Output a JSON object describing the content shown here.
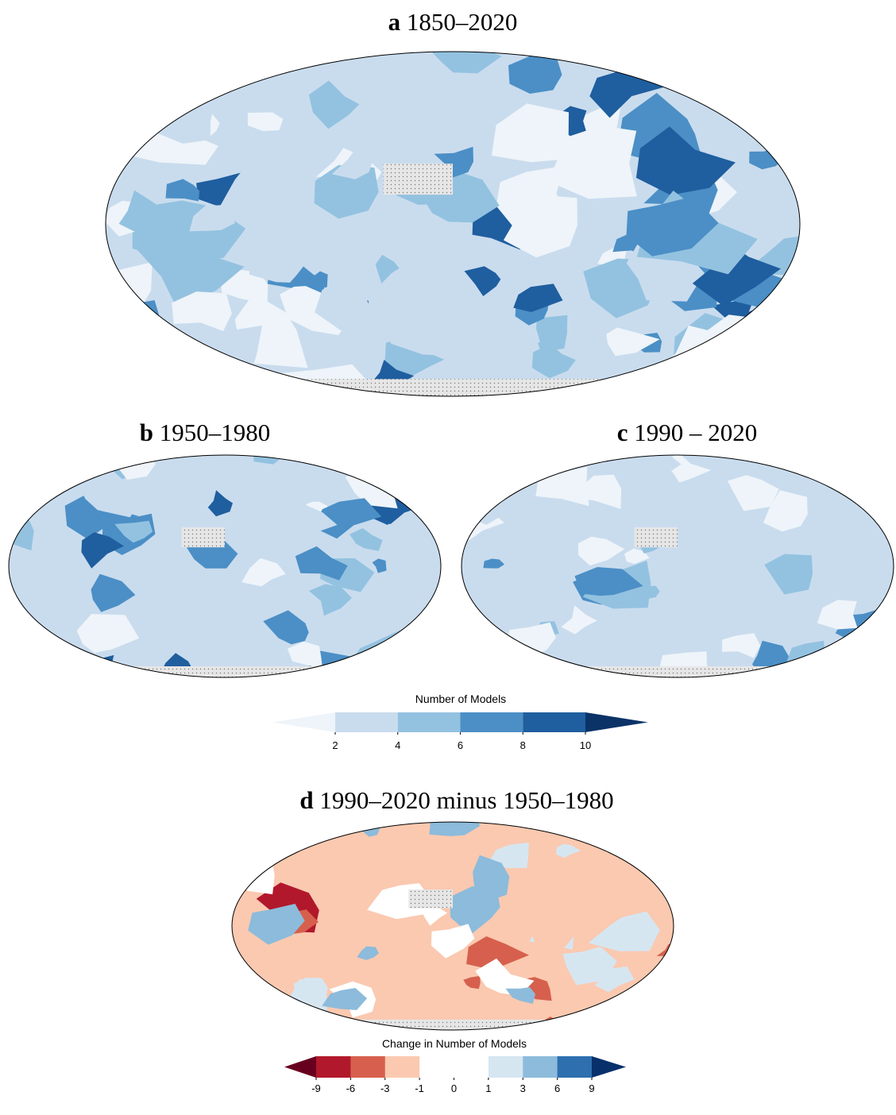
{
  "panels": [
    {
      "letter": "a",
      "title": "1850–2020"
    },
    {
      "letter": "b",
      "title": "1950–1980"
    },
    {
      "letter": "c",
      "title": "1990 – 2020"
    },
    {
      "letter": "d",
      "title": "1990–2020 minus 1950–1980"
    }
  ],
  "colorbar_models": {
    "label": "Number of Models",
    "ticks": [
      2,
      4,
      6,
      8,
      10
    ],
    "colors": [
      "#eef4f9",
      "#c9dcee",
      "#93c2e0",
      "#4b8fc6",
      "#1f5e9f",
      "#0b3368"
    ]
  },
  "colorbar_change": {
    "label": "Change in Number of Models",
    "ticks": [
      -9,
      -6,
      -3,
      -1,
      0,
      1,
      3,
      6,
      9
    ],
    "colors": [
      "#67001f",
      "#b2182b",
      "#d6604d",
      "#fac9b0",
      "#ffffff",
      "#ffffff",
      "#d6e6f1",
      "#8cbbdb",
      "#2e6fb0",
      "#08306b"
    ]
  }
}
